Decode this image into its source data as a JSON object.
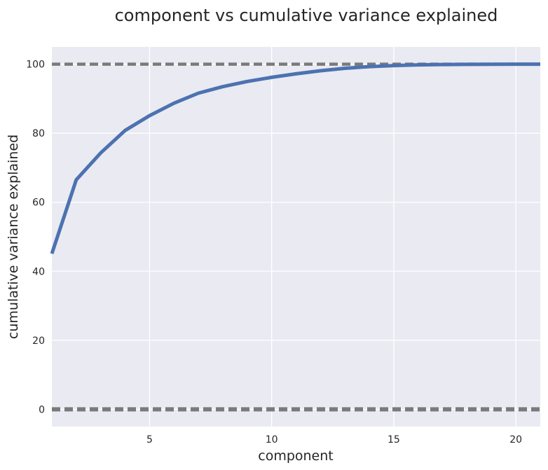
{
  "chart_data": {
    "type": "line",
    "title": "component vs cumulative variance explained",
    "xlabel": "component",
    "ylabel": "cumulative variance explained",
    "xlim": [
      1,
      21
    ],
    "ylim": [
      -5,
      105
    ],
    "xticks": [
      5,
      10,
      15,
      20
    ],
    "yticks": [
      0,
      20,
      40,
      60,
      80,
      100
    ],
    "grid": true,
    "series": [
      {
        "name": "cumulative variance explained",
        "color": "#4c72b0",
        "x": [
          1,
          2,
          3,
          4,
          5,
          6,
          7,
          8,
          9,
          10,
          11,
          12,
          13,
          14,
          15,
          16,
          17,
          18,
          19,
          20,
          21
        ],
        "y": [
          45.1,
          66.5,
          74.3,
          80.8,
          85.1,
          88.7,
          91.6,
          93.5,
          95.0,
          96.2,
          97.2,
          98.1,
          98.8,
          99.3,
          99.6,
          99.8,
          99.9,
          99.95,
          99.98,
          100,
          100
        ]
      }
    ],
    "reference_lines": [
      {
        "name": "upper-reference",
        "y": 100,
        "color": "#7a7a7a",
        "style": "dashed"
      },
      {
        "name": "lower-reference",
        "y": 0,
        "color": "#7a7a7a",
        "style": "dashed"
      }
    ],
    "colors": {
      "background": "#eaeaf2",
      "grid": "#ffffff"
    }
  }
}
